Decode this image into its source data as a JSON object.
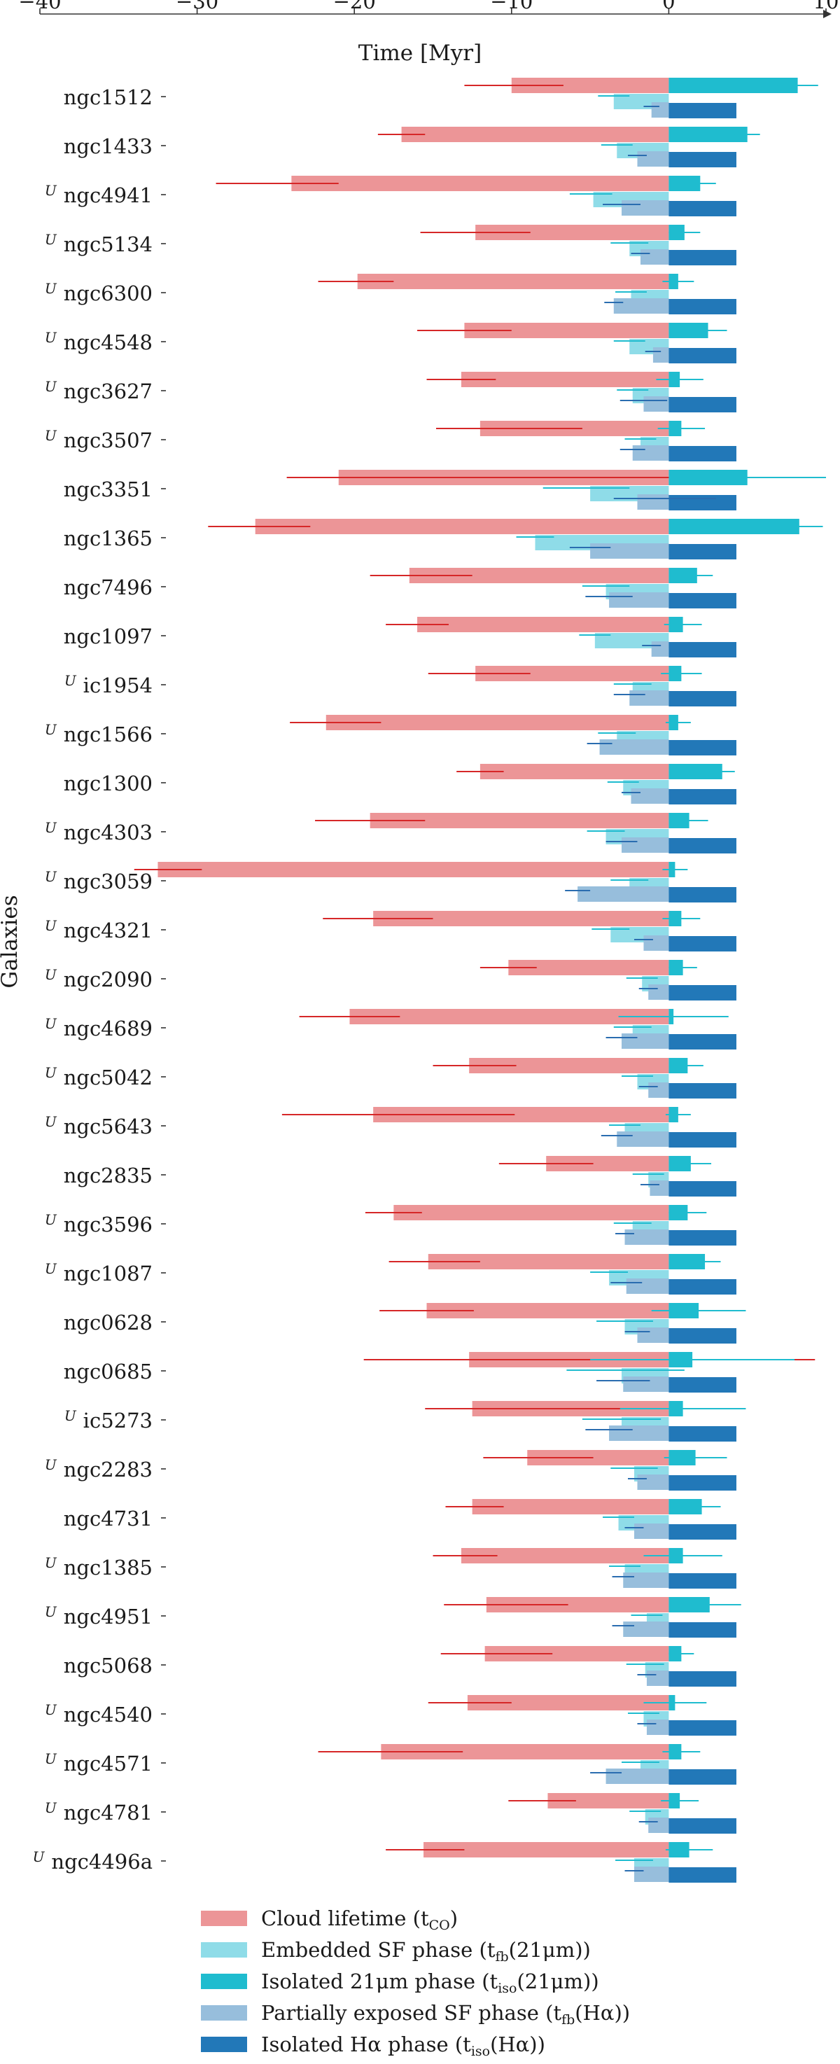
{
  "chart_data": {
    "type": "bar",
    "orientation": "horizontal",
    "xlabel": "Time [Myr]",
    "ylabel": "Galaxies",
    "xlim": [
      -40,
      10
    ],
    "xticks": [
      -40,
      -30,
      -20,
      -10,
      0,
      10
    ],
    "xtick_labels": [
      "−40",
      "−30",
      "−20",
      "−10",
      "0",
      "10"
    ],
    "legend_position": "bottom",
    "legend": [
      {
        "key": "tco",
        "label": "Cloud lifetime (t",
        "sub": "CO",
        "tail": ")",
        "color": "#ec9597"
      },
      {
        "key": "tfb21",
        "label": "Embedded SF phase (t",
        "sub": "fb",
        "tail": "(21μm))",
        "color": "#8fdce8"
      },
      {
        "key": "tiso21",
        "label": "Isolated 21μm phase (t",
        "sub": "iso",
        "tail": "(21μm))",
        "color": "#1fbccf"
      },
      {
        "key": "tfbha",
        "label": "Partially exposed SF phase (t",
        "sub": "fb",
        "tail": "(Hα))",
        "color": "#97bedc"
      },
      {
        "key": "tisoha",
        "label": "Isolated Hα phase (t",
        "sub": "iso",
        "tail": "(Hα))",
        "color": "#2278b8"
      }
    ],
    "error_colors": {
      "tco": "#d62728",
      "tfb21": "#1fbccf",
      "tiso21": "#1fbccf",
      "tfbha": "#2a6db0",
      "tisoha": "#2a6db0"
    },
    "galaxies": [
      {
        "name": "ngc1512",
        "prefix": "",
        "tco": 10.0,
        "tco_err": [
          3.0,
          3.3
        ],
        "tfb21": 3.5,
        "tfb21_err": [
          1.0,
          1.0
        ],
        "tiso21": 8.2,
        "tiso21_err": [
          1.3,
          1.3
        ],
        "tfbha": 1.1,
        "tfbha_err": [
          0.5,
          0.5
        ],
        "tisoha": 4.3,
        "tisoha_err": [
          0,
          0
        ]
      },
      {
        "name": "ngc1433",
        "prefix": "",
        "tco": 17.0,
        "tco_err": [
          1.5,
          1.5
        ],
        "tfb21": 3.3,
        "tfb21_err": [
          1.0,
          1.0
        ],
        "tiso21": 5.0,
        "tiso21_err": [
          0.8,
          0.8
        ],
        "tfbha": 2.0,
        "tfbha_err": [
          0.6,
          0.6
        ],
        "tisoha": 4.3,
        "tisoha_err": [
          0,
          0
        ]
      },
      {
        "name": "ngc4941",
        "prefix": "U",
        "tco": 24.0,
        "tco_err": [
          4.8,
          3.0
        ],
        "tfb21": 4.8,
        "tfb21_err": [
          1.5,
          1.2
        ],
        "tiso21": 2.0,
        "tiso21_err": [
          1.0,
          1.0
        ],
        "tfbha": 3.0,
        "tfbha_err": [
          1.2,
          1.2
        ],
        "tisoha": 4.3,
        "tisoha_err": [
          0,
          0
        ]
      },
      {
        "name": "ngc5134",
        "prefix": "U",
        "tco": 12.3,
        "tco_err": [
          3.5,
          3.5
        ],
        "tfb21": 2.5,
        "tfb21_err": [
          1.2,
          1.2
        ],
        "tiso21": 1.0,
        "tiso21_err": [
          1.0,
          1.0
        ],
        "tfbha": 1.8,
        "tfbha_err": [
          0.6,
          0.6
        ],
        "tisoha": 4.3,
        "tisoha_err": [
          0,
          0
        ]
      },
      {
        "name": "ngc6300",
        "prefix": "U",
        "tco": 19.8,
        "tco_err": [
          2.5,
          2.3
        ],
        "tfb21": 2.4,
        "tfb21_err": [
          1.0,
          1.0
        ],
        "tiso21": 0.6,
        "tiso21_err": [
          1.0,
          1.0
        ],
        "tfbha": 3.5,
        "tfbha_err": [
          0.6,
          0.6
        ],
        "tisoha": 4.3,
        "tisoha_err": [
          0,
          0
        ]
      },
      {
        "name": "ngc4548",
        "prefix": "U",
        "tco": 13.0,
        "tco_err": [
          3.0,
          3.0
        ],
        "tfb21": 2.5,
        "tfb21_err": [
          1.0,
          1.0
        ],
        "tiso21": 2.5,
        "tiso21_err": [
          1.2,
          1.2
        ],
        "tfbha": 1.0,
        "tfbha_err": [
          0.5,
          0.5
        ],
        "tisoha": 4.3,
        "tisoha_err": [
          0,
          0
        ]
      },
      {
        "name": "ngc3627",
        "prefix": "U",
        "tco": 13.2,
        "tco_err": [
          2.2,
          2.2
        ],
        "tfb21": 2.3,
        "tfb21_err": [
          1.0,
          1.0
        ],
        "tiso21": 0.7,
        "tiso21_err": [
          1.5,
          1.5
        ],
        "tfbha": 1.6,
        "tfbha_err": [
          1.5,
          1.5
        ],
        "tisoha": 4.3,
        "tisoha_err": [
          0,
          0
        ]
      },
      {
        "name": "ngc3507",
        "prefix": "U",
        "tco": 12.0,
        "tco_err": [
          2.8,
          6.5
        ],
        "tfb21": 1.8,
        "tfb21_err": [
          1.0,
          1.0
        ],
        "tiso21": 0.8,
        "tiso21_err": [
          1.5,
          1.5
        ],
        "tfbha": 2.3,
        "tfbha_err": [
          0.8,
          0.8
        ],
        "tisoha": 4.3,
        "tisoha_err": [
          0,
          0
        ]
      },
      {
        "name": "ngc3351",
        "prefix": "",
        "tco": 21.0,
        "tco_err": [
          3.3,
          28.5
        ],
        "tfb21": 5.0,
        "tfb21_err": [
          3.0,
          2.5
        ],
        "tiso21": 5.0,
        "tiso21_err": [
          5.0,
          5.0
        ],
        "tfbha": 2.0,
        "tfbha_err": [
          1.5,
          5.0
        ],
        "tisoha": 4.3,
        "tisoha_err": [
          0,
          0
        ]
      },
      {
        "name": "ngc1365",
        "prefix": "",
        "tco": 26.3,
        "tco_err": [
          3.0,
          3.5
        ],
        "tfb21": 8.5,
        "tfb21_err": [
          1.2,
          1.2
        ],
        "tiso21": 8.3,
        "tiso21_err": [
          1.5,
          1.5
        ],
        "tfbha": 5.0,
        "tfbha_err": [
          1.3,
          1.3
        ],
        "tisoha": 4.3,
        "tisoha_err": [
          0,
          0
        ]
      },
      {
        "name": "ngc7496",
        "prefix": "",
        "tco": 16.5,
        "tco_err": [
          2.5,
          4.0
        ],
        "tfb21": 4.0,
        "tfb21_err": [
          1.5,
          1.5
        ],
        "tiso21": 1.8,
        "tiso21_err": [
          1.0,
          1.0
        ],
        "tfbha": 3.8,
        "tfbha_err": [
          1.5,
          1.5
        ],
        "tisoha": 4.3,
        "tisoha_err": [
          0,
          0
        ]
      },
      {
        "name": "ngc1097",
        "prefix": "",
        "tco": 16.0,
        "tco_err": [
          2.0,
          2.0
        ],
        "tfb21": 4.7,
        "tfb21_err": [
          1.0,
          1.0
        ],
        "tiso21": 0.9,
        "tiso21_err": [
          1.2,
          1.2
        ],
        "tfbha": 1.1,
        "tfbha_err": [
          0.6,
          0.6
        ],
        "tisoha": 4.3,
        "tisoha_err": [
          0,
          0
        ]
      },
      {
        "name": "ic1954",
        "prefix": "U",
        "tco": 12.3,
        "tco_err": [
          3.0,
          3.5
        ],
        "tfb21": 2.3,
        "tfb21_err": [
          1.2,
          1.2
        ],
        "tiso21": 0.8,
        "tiso21_err": [
          1.3,
          1.3
        ],
        "tfbha": 2.5,
        "tfbha_err": [
          1.0,
          1.0
        ],
        "tisoha": 4.3,
        "tisoha_err": [
          0,
          0
        ]
      },
      {
        "name": "ngc1566",
        "prefix": "U",
        "tco": 21.8,
        "tco_err": [
          2.3,
          3.5
        ],
        "tfb21": 3.3,
        "tfb21_err": [
          1.2,
          1.2
        ],
        "tiso21": 0.6,
        "tiso21_err": [
          0.8,
          0.8
        ],
        "tfbha": 4.4,
        "tfbha_err": [
          0.8,
          0.8
        ],
        "tisoha": 4.3,
        "tisoha_err": [
          0,
          0
        ]
      },
      {
        "name": "ngc1300",
        "prefix": "",
        "tco": 12.0,
        "tco_err": [
          1.5,
          1.5
        ],
        "tfb21": 2.9,
        "tfb21_err": [
          1.0,
          1.0
        ],
        "tiso21": 3.4,
        "tiso21_err": [
          0.8,
          0.8
        ],
        "tfbha": 2.4,
        "tfbha_err": [
          0.6,
          0.6
        ],
        "tisoha": 4.3,
        "tisoha_err": [
          0,
          0
        ]
      },
      {
        "name": "ngc4303",
        "prefix": "U",
        "tco": 19.0,
        "tco_err": [
          3.5,
          3.5
        ],
        "tfb21": 4.0,
        "tfb21_err": [
          1.2,
          1.2
        ],
        "tiso21": 1.3,
        "tiso21_err": [
          1.2,
          1.2
        ],
        "tfbha": 3.0,
        "tfbha_err": [
          1.0,
          1.0
        ],
        "tisoha": 4.3,
        "tisoha_err": [
          0,
          0
        ]
      },
      {
        "name": "ngc3059",
        "prefix": "U",
        "tco": 32.5,
        "tco_err": [
          1.5,
          2.8
        ],
        "tfb21": 2.5,
        "tfb21_err": [
          1.2,
          1.2
        ],
        "tiso21": 0.4,
        "tiso21_err": [
          0.8,
          0.8
        ],
        "tfbha": 5.8,
        "tfbha_err": [
          0.8,
          0.8
        ],
        "tisoha": 4.3,
        "tisoha_err": [
          0,
          0
        ]
      },
      {
        "name": "ngc4321",
        "prefix": "U",
        "tco": 18.8,
        "tco_err": [
          3.2,
          3.8
        ],
        "tfb21": 3.7,
        "tfb21_err": [
          1.2,
          1.2
        ],
        "tiso21": 0.8,
        "tiso21_err": [
          1.2,
          1.2
        ],
        "tfbha": 1.6,
        "tfbha_err": [
          0.6,
          0.6
        ],
        "tisoha": 4.3,
        "tisoha_err": [
          0,
          0
        ]
      },
      {
        "name": "ngc2090",
        "prefix": "U",
        "tco": 10.2,
        "tco_err": [
          1.8,
          1.8
        ],
        "tfb21": 1.7,
        "tfb21_err": [
          1.0,
          1.0
        ],
        "tiso21": 0.9,
        "tiso21_err": [
          0.9,
          0.9
        ],
        "tfbha": 1.3,
        "tfbha_err": [
          0.6,
          0.6
        ],
        "tisoha": 4.3,
        "tisoha_err": [
          0,
          0
        ]
      },
      {
        "name": "ngc4689",
        "prefix": "U",
        "tco": 20.3,
        "tco_err": [
          3.2,
          3.2
        ],
        "tfb21": 2.3,
        "tfb21_err": [
          1.2,
          1.2
        ],
        "tiso21": 0.3,
        "tiso21_err": [
          3.5,
          3.5
        ],
        "tfbha": 3.0,
        "tfbha_err": [
          1.0,
          1.0
        ],
        "tisoha": 4.3,
        "tisoha_err": [
          0,
          0
        ]
      },
      {
        "name": "ngc5042",
        "prefix": "U",
        "tco": 12.7,
        "tco_err": [
          2.3,
          3.0
        ],
        "tfb21": 2.0,
        "tfb21_err": [
          1.0,
          1.0
        ],
        "tiso21": 1.2,
        "tiso21_err": [
          1.0,
          1.0
        ],
        "tfbha": 1.3,
        "tfbha_err": [
          0.6,
          0.6
        ],
        "tisoha": 4.3,
        "tisoha_err": [
          0,
          0
        ]
      },
      {
        "name": "ngc5643",
        "prefix": "U",
        "tco": 18.8,
        "tco_err": [
          5.8,
          9.0
        ],
        "tfb21": 2.8,
        "tfb21_err": [
          1.0,
          1.0
        ],
        "tiso21": 0.6,
        "tiso21_err": [
          0.8,
          0.8
        ],
        "tfbha": 3.3,
        "tfbha_err": [
          1.0,
          1.0
        ],
        "tisoha": 4.3,
        "tisoha_err": [
          0,
          0
        ]
      },
      {
        "name": "ngc2835",
        "prefix": "",
        "tco": 7.8,
        "tco_err": [
          3.0,
          3.0
        ],
        "tfb21": 1.3,
        "tfb21_err": [
          1.0,
          1.0
        ],
        "tiso21": 1.4,
        "tiso21_err": [
          1.3,
          1.3
        ],
        "tfbha": 1.2,
        "tfbha_err": [
          0.6,
          0.6
        ],
        "tisoha": 4.3,
        "tisoha_err": [
          0,
          0
        ]
      },
      {
        "name": "ngc3596",
        "prefix": "U",
        "tco": 17.5,
        "tco_err": [
          1.8,
          1.8
        ],
        "tfb21": 2.3,
        "tfb21_err": [
          1.2,
          1.2
        ],
        "tiso21": 1.2,
        "tiso21_err": [
          1.2,
          1.2
        ],
        "tfbha": 2.8,
        "tfbha_err": [
          0.6,
          0.6
        ],
        "tisoha": 4.3,
        "tisoha_err": [
          0,
          0
        ]
      },
      {
        "name": "ngc1087",
        "prefix": "U",
        "tco": 15.3,
        "tco_err": [
          2.5,
          3.3
        ],
        "tfb21": 3.8,
        "tfb21_err": [
          1.2,
          1.2
        ],
        "tiso21": 2.3,
        "tiso21_err": [
          1.0,
          1.0
        ],
        "tfbha": 2.7,
        "tfbha_err": [
          1.0,
          1.0
        ],
        "tisoha": 4.3,
        "tisoha_err": [
          0,
          0
        ]
      },
      {
        "name": "ngc0628",
        "prefix": "",
        "tco": 15.4,
        "tco_err": [
          3.0,
          3.0
        ],
        "tfb21": 2.8,
        "tfb21_err": [
          1.8,
          1.8
        ],
        "tiso21": 1.9,
        "tiso21_err": [
          3.0,
          3.0
        ],
        "tfbha": 2.0,
        "tfbha_err": [
          0.8,
          0.8
        ],
        "tisoha": 4.3,
        "tisoha_err": [
          0,
          0
        ]
      },
      {
        "name": "ngc0685",
        "prefix": "",
        "tco": 12.7,
        "tco_err": [
          6.7,
          22.0
        ],
        "tfb21": 3.0,
        "tfb21_err": [
          3.5,
          4.0
        ],
        "tiso21": 1.5,
        "tiso21_err": [
          6.5,
          6.5
        ],
        "tfbha": 2.9,
        "tfbha_err": [
          1.7,
          1.7
        ],
        "tisoha": 4.3,
        "tisoha_err": [
          0,
          0
        ]
      },
      {
        "name": "ic5273",
        "prefix": "U",
        "tco": 12.5,
        "tco_err": [
          3.0,
          9.5
        ],
        "tfb21": 3.0,
        "tfb21_err": [
          2.5,
          2.5
        ],
        "tiso21": 0.9,
        "tiso21_err": [
          4.0,
          4.0
        ],
        "tfbha": 3.8,
        "tfbha_err": [
          1.5,
          1.5
        ],
        "tisoha": 4.3,
        "tisoha_err": [
          0,
          0
        ]
      },
      {
        "name": "ngc2283",
        "prefix": "U",
        "tco": 9.0,
        "tco_err": [
          2.8,
          4.2
        ],
        "tfb21": 2.2,
        "tfb21_err": [
          1.5,
          1.5
        ],
        "tiso21": 1.7,
        "tiso21_err": [
          2.0,
          2.0
        ],
        "tfbha": 2.0,
        "tfbha_err": [
          0.6,
          0.6
        ],
        "tisoha": 4.3,
        "tisoha_err": [
          0,
          0
        ]
      },
      {
        "name": "ngc4731",
        "prefix": "",
        "tco": 12.5,
        "tco_err": [
          1.7,
          2.0
        ],
        "tfb21": 3.2,
        "tfb21_err": [
          1.0,
          1.0
        ],
        "tiso21": 2.1,
        "tiso21_err": [
          1.2,
          1.2
        ],
        "tfbha": 2.2,
        "tfbha_err": [
          0.6,
          0.6
        ],
        "tisoha": 4.3,
        "tisoha_err": [
          0,
          0
        ]
      },
      {
        "name": "ngc1385",
        "prefix": "U",
        "tco": 13.2,
        "tco_err": [
          1.8,
          2.3
        ],
        "tfb21": 2.8,
        "tfb21_err": [
          1.0,
          1.0
        ],
        "tiso21": 0.9,
        "tiso21_err": [
          2.5,
          2.5
        ],
        "tfbha": 2.9,
        "tfbha_err": [
          0.7,
          0.7
        ],
        "tisoha": 4.3,
        "tisoha_err": [
          0,
          0
        ]
      },
      {
        "name": "ngc4951",
        "prefix": "U",
        "tco": 11.6,
        "tco_err": [
          2.7,
          5.2
        ],
        "tfb21": 1.4,
        "tfb21_err": [
          1.0,
          1.0
        ],
        "tiso21": 2.6,
        "tiso21_err": [
          2.0,
          2.0
        ],
        "tfbha": 2.9,
        "tfbha_err": [
          0.7,
          0.7
        ],
        "tisoha": 4.3,
        "tisoha_err": [
          0,
          0
        ]
      },
      {
        "name": "ngc5068",
        "prefix": "",
        "tco": 11.7,
        "tco_err": [
          2.8,
          4.3
        ],
        "tfb21": 1.5,
        "tfb21_err": [
          1.2,
          1.2
        ],
        "tiso21": 0.8,
        "tiso21_err": [
          0.8,
          0.8
        ],
        "tfbha": 1.4,
        "tfbha_err": [
          0.6,
          0.6
        ],
        "tisoha": 4.3,
        "tisoha_err": [
          0,
          0
        ]
      },
      {
        "name": "ngc4540",
        "prefix": "U",
        "tco": 12.8,
        "tco_err": [
          2.5,
          2.8
        ],
        "tfb21": 1.6,
        "tfb21_err": [
          1.0,
          1.0
        ],
        "tiso21": 0.4,
        "tiso21_err": [
          2.0,
          2.0
        ],
        "tfbha": 1.4,
        "tfbha_err": [
          0.6,
          0.6
        ],
        "tisoha": 4.3,
        "tisoha_err": [
          0,
          0
        ]
      },
      {
        "name": "ngc4571",
        "prefix": "U",
        "tco": 18.3,
        "tco_err": [
          4.0,
          5.2
        ],
        "tfb21": 1.8,
        "tfb21_err": [
          1.2,
          1.2
        ],
        "tiso21": 0.8,
        "tiso21_err": [
          1.2,
          1.2
        ],
        "tfbha": 4.0,
        "tfbha_err": [
          1.0,
          1.0
        ],
        "tisoha": 4.3,
        "tisoha_err": [
          0,
          0
        ]
      },
      {
        "name": "ngc4781",
        "prefix": "U",
        "tco": 7.7,
        "tco_err": [
          2.5,
          1.8
        ],
        "tfb21": 1.5,
        "tfb21_err": [
          1.0,
          1.0
        ],
        "tiso21": 0.7,
        "tiso21_err": [
          1.2,
          1.2
        ],
        "tfbha": 1.3,
        "tfbha_err": [
          0.6,
          0.6
        ],
        "tisoha": 4.3,
        "tisoha_err": [
          0,
          0
        ]
      },
      {
        "name": "ngc4496a",
        "prefix": "U",
        "tco": 15.6,
        "tco_err": [
          2.4,
          2.6
        ],
        "tfb21": 2.2,
        "tfb21_err": [
          1.2,
          1.2
        ],
        "tiso21": 1.3,
        "tiso21_err": [
          1.5,
          1.5
        ],
        "tfbha": 2.2,
        "tfbha_err": [
          0.6,
          0.6
        ],
        "tisoha": 4.3,
        "tisoha_err": [
          0,
          0
        ]
      }
    ]
  }
}
